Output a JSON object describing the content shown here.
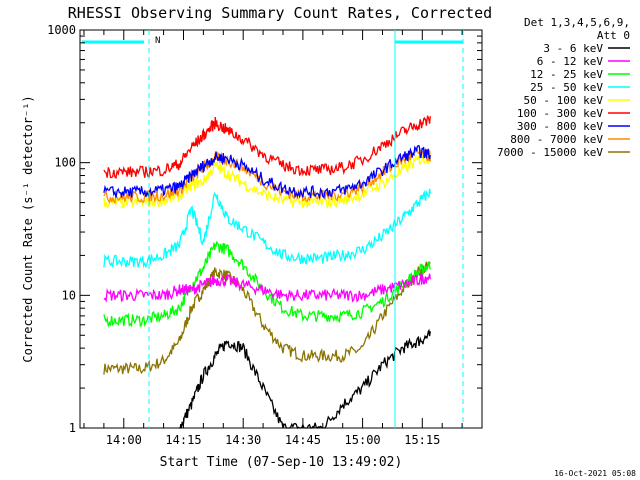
{
  "title": "RHESSI Observing Summary Count Rates, Corrected",
  "footer_date": "16-Oct-2021 05:08",
  "chart_data": {
    "type": "line",
    "title": "RHESSI Observing Summary Count Rates, Corrected",
    "xlabel": "Start Time (07-Sep-10 13:49:02)",
    "ylabel": "Corrected Count Rate (s⁻¹ detector⁻¹)",
    "y_scale": "log",
    "ylim": [
      1,
      1000
    ],
    "xlim": [
      "13:49",
      "15:30"
    ],
    "y_ticks": [
      "1",
      "10",
      "100",
      "1000"
    ],
    "x_ticks": [
      "14:00",
      "14:15",
      "14:30",
      "14:45",
      "15:00",
      "15:15"
    ],
    "legend_title": [
      "Det 1,3,4,5,6,9,",
      "Att 0"
    ],
    "legend_placement": "right",
    "annotation": "N",
    "grid": false,
    "x": [
      "13:55",
      "14:00",
      "14:05",
      "14:10",
      "14:14",
      "14:17",
      "14:20",
      "14:23",
      "14:26",
      "14:30",
      "14:35",
      "14:40",
      "14:45",
      "14:50",
      "14:55",
      "15:00",
      "15:05",
      "15:10",
      "15:14",
      "15:17"
    ],
    "series": [
      {
        "name": "3 - 6 keV",
        "color": "#000000",
        "values": [
          null,
          null,
          null,
          null,
          1.0,
          1.5,
          2.5,
          3.5,
          4.5,
          4.0,
          2.0,
          1.0,
          1.0,
          1.0,
          1.5,
          2.0,
          3.0,
          4.0,
          4.5,
          5.0
        ]
      },
      {
        "name": "6 - 12 keV",
        "color": "#ff00ff",
        "values": [
          10,
          10,
          10,
          10,
          11,
          11,
          12,
          13,
          13,
          12,
          11,
          10,
          10,
          10,
          10,
          10,
          11,
          12,
          13,
          14
        ]
      },
      {
        "name": "12 - 25 keV",
        "color": "#00ff00",
        "values": [
          6.5,
          6.5,
          6.5,
          7,
          8,
          12,
          16,
          24,
          22,
          17,
          11,
          8,
          7,
          7,
          7,
          7.5,
          9,
          12,
          15,
          17
        ]
      },
      {
        "name": "25 - 50 keV",
        "color": "#00ffff",
        "values": [
          18,
          18,
          18,
          20,
          24,
          45,
          25,
          60,
          38,
          32,
          25,
          20,
          19,
          19,
          20,
          22,
          28,
          38,
          50,
          60
        ]
      },
      {
        "name": "50 - 100 keV",
        "color": "#ffff00",
        "values": [
          50,
          50,
          50,
          52,
          56,
          68,
          72,
          95,
          82,
          70,
          58,
          52,
          50,
          50,
          52,
          58,
          70,
          88,
          105,
          110
        ]
      },
      {
        "name": "100 - 300 keV",
        "color": "#ff0000",
        "values": [
          85,
          85,
          85,
          88,
          98,
          130,
          160,
          200,
          175,
          150,
          115,
          95,
          88,
          88,
          92,
          105,
          135,
          170,
          195,
          210
        ]
      },
      {
        "name": "300 - 800 keV",
        "color": "#0000ff",
        "values": [
          60,
          60,
          60,
          62,
          66,
          80,
          95,
          110,
          108,
          95,
          75,
          64,
          60,
          60,
          62,
          70,
          88,
          110,
          122,
          115
        ]
      },
      {
        "name": "800 - 7000 keV",
        "color": "#ff8c00",
        "values": [
          55,
          55,
          55,
          57,
          62,
          76,
          92,
          108,
          105,
          92,
          72,
          60,
          56,
          56,
          58,
          66,
          84,
          105,
          118,
          112
        ]
      },
      {
        "name": "7000 - 15000 keV",
        "color": "#8b7500",
        "values": [
          2.8,
          2.8,
          2.8,
          3.2,
          4.5,
          8,
          11,
          15,
          14,
          11,
          6,
          4,
          3.5,
          3.5,
          3.5,
          4,
          7,
          11,
          15,
          17
        ]
      }
    ]
  }
}
